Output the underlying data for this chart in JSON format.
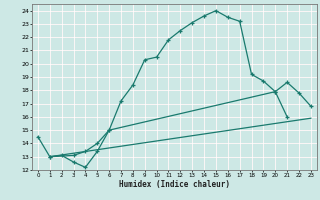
{
  "xlabel": "Humidex (Indice chaleur)",
  "bg_color": "#cde8e5",
  "grid_color": "#ffffff",
  "grid_red_color": "#e8b8b8",
  "line_color": "#1a7a6e",
  "curve1_x": [
    0,
    1,
    2,
    3,
    4,
    5,
    6,
    7,
    8,
    9,
    10,
    11,
    12,
    13,
    14,
    15,
    16,
    17,
    18,
    19,
    20,
    21
  ],
  "curve1_y": [
    14.5,
    13.0,
    13.1,
    12.6,
    12.2,
    13.4,
    15.0,
    17.2,
    18.4,
    20.3,
    20.5,
    21.8,
    22.5,
    23.1,
    23.6,
    24.0,
    23.5,
    23.2,
    19.2,
    18.7,
    17.9,
    16.0
  ],
  "curve2_x": [
    1,
    3,
    4,
    5,
    6,
    20,
    21,
    22,
    23
  ],
  "curve2_y": [
    13.0,
    13.1,
    13.4,
    14.0,
    15.0,
    17.9,
    18.6,
    17.8,
    16.8
  ],
  "curve3_x": [
    1,
    23
  ],
  "curve3_y": [
    13.0,
    15.9
  ],
  "ylim": [
    12,
    24.5
  ],
  "xlim": [
    -0.5,
    23.5
  ],
  "yticks": [
    12,
    13,
    14,
    15,
    16,
    17,
    18,
    19,
    20,
    21,
    22,
    23,
    24
  ],
  "xticks": [
    0,
    1,
    2,
    3,
    4,
    5,
    6,
    7,
    8,
    9,
    10,
    11,
    12,
    13,
    14,
    15,
    16,
    17,
    18,
    19,
    20,
    21,
    22,
    23
  ]
}
